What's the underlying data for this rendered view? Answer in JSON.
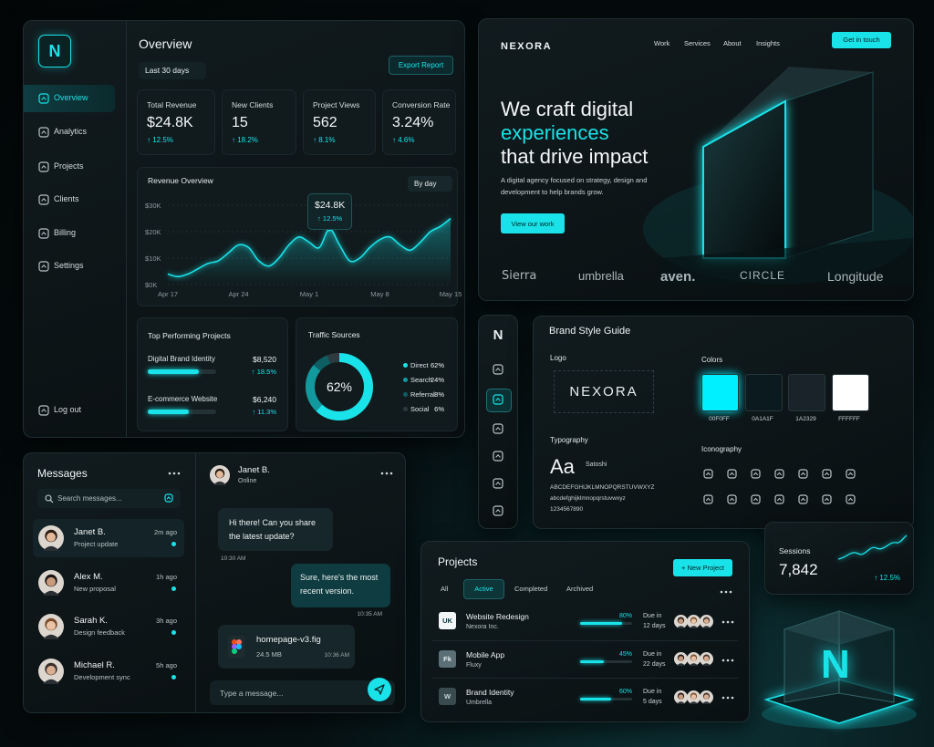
{
  "brand": {
    "name": "NEXORA",
    "mark": "N"
  },
  "sidebar": {
    "nav": [
      "Overview",
      "Analytics",
      "Projects",
      "Clients",
      "Billing",
      "Settings"
    ],
    "active": 0,
    "logout": "Log out"
  },
  "overview": {
    "title": "Overview",
    "range": "Last 30 days",
    "export": "Export Report",
    "stats": [
      {
        "label": "Total Revenue",
        "value": "$24.8K",
        "change": "↑ 12.5%"
      },
      {
        "label": "New Clients",
        "value": "15",
        "change": "↑ 18.2%"
      },
      {
        "label": "Project Views",
        "value": "562",
        "change": "↑ 8.1%"
      },
      {
        "label": "Conversion Rate",
        "value": "3.24%",
        "change": "↑ 4.6%"
      }
    ],
    "revenue_chart": {
      "type": "line",
      "title": "Revenue Overview",
      "period": "By day",
      "color": "#19e3e8",
      "categories": [
        "Apr 17",
        null,
        null,
        null,
        null,
        null,
        null,
        "Apr 24",
        null,
        null,
        null,
        null,
        null,
        null,
        "May 1",
        null,
        null,
        null,
        null,
        null,
        null,
        "May 8",
        null,
        null,
        null,
        null,
        null,
        null,
        "May 15"
      ],
      "values": [
        4,
        3,
        4,
        6,
        8,
        9,
        12,
        15,
        14,
        9,
        7,
        10,
        15,
        18,
        16,
        14,
        21,
        15,
        9,
        10,
        14,
        17,
        18,
        15,
        13,
        16,
        20,
        22,
        25
      ],
      "ylim": [
        0,
        30
      ],
      "yticks": [
        {
          "value": 0,
          "label": "$0K"
        },
        {
          "value": 10,
          "label": "$10K"
        },
        {
          "value": 20,
          "label": "$20K"
        },
        {
          "value": 30,
          "label": "$30K"
        }
      ],
      "grid": true,
      "tooltip": {
        "value": "$24.8K",
        "change": "↑ 12.5%"
      }
    },
    "top_projects": {
      "title": "Top Performing Projects",
      "items": [
        {
          "name": "Digital Brand Identity",
          "amount": "$8,520",
          "change": "↑ 18.5%"
        },
        {
          "name": "E-commerce Website",
          "amount": "$6,240",
          "change": "↑ 11.3%"
        }
      ]
    },
    "traffic": {
      "type": "pie",
      "title": "Traffic Sources",
      "categories": [
        "Direct",
        "Search",
        "Referral",
        "Social"
      ],
      "values": [
        62,
        24,
        8,
        6
      ],
      "value_labels": [
        "62%",
        "24%",
        "8%",
        "6%"
      ],
      "colors": [
        "#19e3e8",
        "#12999e",
        "#0d5f63",
        "#2c3b3f"
      ]
    }
  },
  "hero": {
    "nav": [
      "Work",
      "Services",
      "About",
      "Insights"
    ],
    "cta": "Get in touch",
    "headline": [
      "We craft digital",
      "experiences",
      "that drive impact"
    ],
    "subtitle": "A digital agency focused on strategy, design and development to help brands grow.",
    "button": "View our work",
    "logos": [
      "Sierra",
      "umbrella",
      "aven.",
      "CIRCLE",
      "Longitude"
    ]
  },
  "style_guide": {
    "title": "Brand Style Guide",
    "logo_label": "Logo",
    "colors_label": "Colors",
    "colors": [
      {
        "label": "00F0FF",
        "color": "#00f0ff"
      },
      {
        "label": "0A1A1F",
        "color": "#0a1a1f"
      },
      {
        "label": "1A2329",
        "color": "#1a2329"
      },
      {
        "label": "FFFFFF",
        "color": "#ffffff"
      }
    ],
    "typography_label": "Typography",
    "sample": "Aa",
    "font": "Satoshi",
    "alphabet": [
      "ABCDEFGHIJKLMNOPQRSTUVWXYZ",
      "abcdefghijklmnopqrstuvwxyz",
      "1234567890"
    ],
    "iconography_label": "Iconography"
  },
  "sessions": {
    "label": "Sessions",
    "value": "7,842",
    "change": "↑ 12.5%"
  },
  "messages": {
    "title": "Messages",
    "search": "Search messages...",
    "conversations": [
      {
        "name": "Janet B.",
        "time": "2m ago",
        "preview": "Project update"
      },
      {
        "name": "Alex M.",
        "time": "1h ago",
        "preview": "New proposal"
      },
      {
        "name": "Sarah K.",
        "time": "3h ago",
        "preview": "Design feedback"
      },
      {
        "name": "Michael R.",
        "time": "5h ago",
        "preview": "Development sync"
      }
    ],
    "chat": {
      "name": "Janet B.",
      "status": "Online",
      "incoming": {
        "text": "Hi there! Can you share the latest update?",
        "time": "10:30 AM"
      },
      "outgoing": {
        "text": "Sure, here's the most recent version.",
        "time": "10:35 AM"
      },
      "file": {
        "name": "homepage-v3.fig",
        "size": "24.5 MB",
        "time": "10:36 AM"
      },
      "placeholder": "Type a message..."
    }
  },
  "projects": {
    "title": "Projects",
    "new": "+ New Project",
    "tabs": [
      "All",
      "Active",
      "Completed",
      "Archived"
    ],
    "active_tab": 1,
    "rows": [
      {
        "badge": "UK",
        "name": "Website Redesign",
        "client": "Nexora Inc.",
        "progress": 80,
        "progress_label": "80%",
        "due_label": "Due in",
        "due": "12 days"
      },
      {
        "badge": "Fk",
        "name": "Mobile App",
        "client": "Fluxy",
        "progress": 45,
        "progress_label": "45%",
        "due_label": "Due in",
        "due": "22 days"
      },
      {
        "badge": "W",
        "name": "Brand Identity",
        "client": "Umbrella",
        "progress": 60,
        "progress_label": "60%",
        "due_label": "Due in",
        "due": "5 days"
      }
    ]
  }
}
